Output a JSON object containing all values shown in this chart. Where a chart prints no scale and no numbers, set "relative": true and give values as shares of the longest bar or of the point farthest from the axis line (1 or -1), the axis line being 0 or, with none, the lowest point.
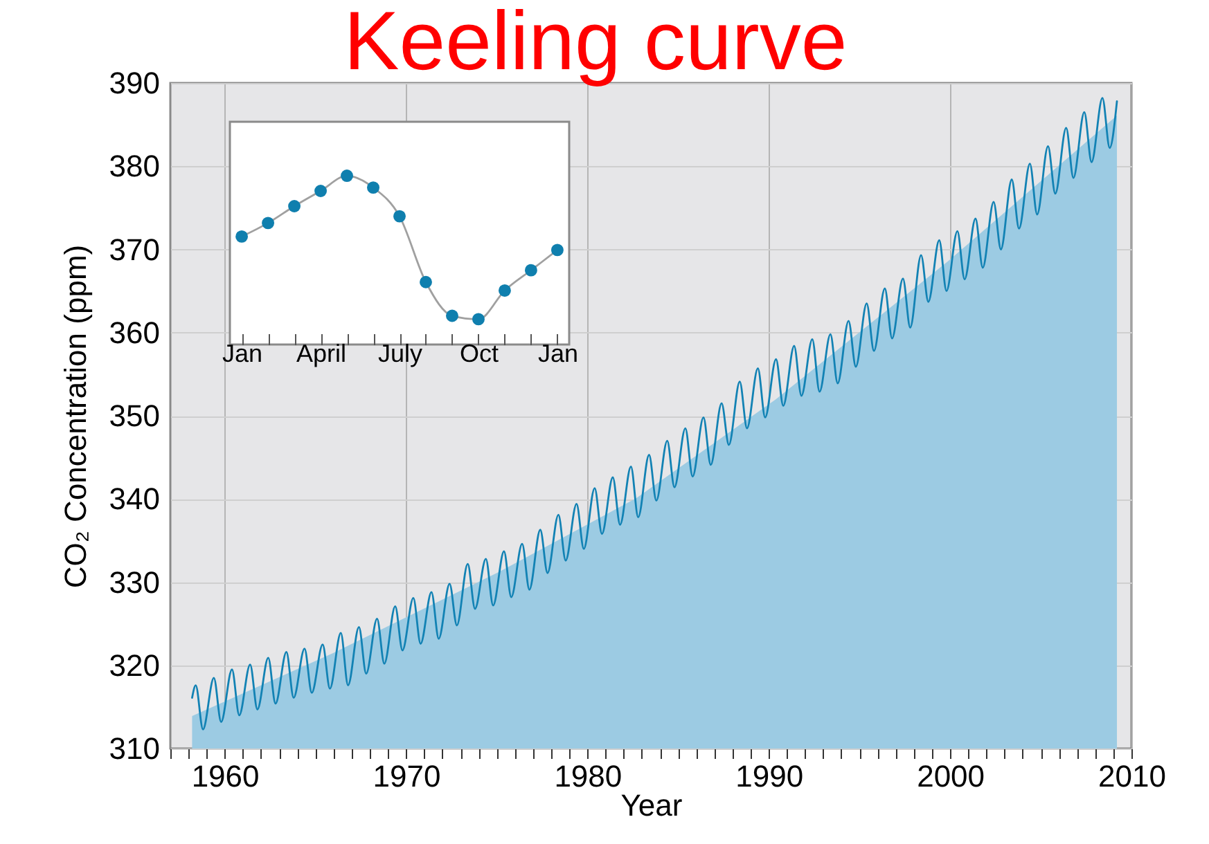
{
  "chart_data": [
    {
      "type": "line",
      "title": "Keeling curve",
      "xlabel": "Year",
      "ylabel": "CO₂ Concentration (ppm)",
      "xlim": [
        1957,
        2010
      ],
      "ylim": [
        310,
        390
      ],
      "xticks": [
        {
          "value": 1957,
          "label": null
        },
        {
          "value": 1958,
          "label": null
        },
        {
          "value": 1959,
          "label": null
        },
        1960,
        {
          "value": 1961,
          "label": null
        },
        {
          "value": 1962,
          "label": null
        },
        {
          "value": 1963,
          "label": null
        },
        {
          "value": 1964,
          "label": null
        },
        {
          "value": 1965,
          "label": null
        },
        {
          "value": 1966,
          "label": null
        },
        {
          "value": 1967,
          "label": null
        },
        {
          "value": 1968,
          "label": null
        },
        {
          "value": 1969,
          "label": null
        },
        1970,
        {
          "value": 1971,
          "label": null
        },
        {
          "value": 1972,
          "label": null
        },
        {
          "value": 1973,
          "label": null
        },
        {
          "value": 1974,
          "label": null
        },
        {
          "value": 1975,
          "label": null
        },
        {
          "value": 1976,
          "label": null
        },
        {
          "value": 1977,
          "label": null
        },
        {
          "value": 1978,
          "label": null
        },
        {
          "value": 1979,
          "label": null
        },
        1980,
        {
          "value": 1981,
          "label": null
        },
        {
          "value": 1982,
          "label": null
        },
        {
          "value": 1983,
          "label": null
        },
        {
          "value": 1984,
          "label": null
        },
        {
          "value": 1985,
          "label": null
        },
        {
          "value": 1986,
          "label": null
        },
        {
          "value": 1987,
          "label": null
        },
        {
          "value": 1988,
          "label": null
        },
        {
          "value": 1989,
          "label": null
        },
        1990,
        {
          "value": 1991,
          "label": null
        },
        {
          "value": 1992,
          "label": null
        },
        {
          "value": 1993,
          "label": null
        },
        {
          "value": 1994,
          "label": null
        },
        {
          "value": 1995,
          "label": null
        },
        {
          "value": 1996,
          "label": null
        },
        {
          "value": 1997,
          "label": null
        },
        {
          "value": 1998,
          "label": null
        },
        {
          "value": 1999,
          "label": null
        },
        2000,
        {
          "value": 2001,
          "label": null
        },
        {
          "value": 2002,
          "label": null
        },
        {
          "value": 2003,
          "label": null
        },
        {
          "value": 2004,
          "label": null
        },
        {
          "value": 2005,
          "label": null
        },
        {
          "value": 2006,
          "label": null
        },
        {
          "value": 2007,
          "label": null
        },
        {
          "value": 2008,
          "label": null
        },
        {
          "value": 2009,
          "label": null
        },
        2010
      ],
      "yticks": [
        310,
        320,
        330,
        340,
        350,
        360,
        370,
        380,
        390
      ],
      "grid": true,
      "series": [
        {
          "type": "area",
          "color": "#9ccbe3",
          "x": [
            1958.2,
            1966,
            1975.1,
            1982.7,
            1990.4,
            1999.9,
            2009.2
          ],
          "values": [
            313.9,
            321.5,
            331.2,
            340.1,
            352.0,
            368.6,
            386.1
          ]
        },
        {
          "type": "line",
          "color": "#1282b4",
          "x": [
            1958.2,
            1958.4,
            1958.8,
            1959.4,
            1959.8,
            1960.4,
            1960.8,
            1961.4,
            1961.8,
            1962.4,
            1962.8,
            1963.4,
            1963.8,
            1964.4,
            1964.8,
            1965.4,
            1965.8,
            1966.4,
            1966.8,
            1967.4,
            1967.8,
            1968.4,
            1968.8,
            1969.4,
            1969.8,
            1970.4,
            1970.8,
            1971.4,
            1971.8,
            1972.4,
            1972.8,
            1973.4,
            1973.8,
            1974.4,
            1974.8,
            1975.4,
            1975.8,
            1976.4,
            1976.8,
            1977.4,
            1977.8,
            1978.4,
            1978.8,
            1979.4,
            1979.8,
            1980.4,
            1980.8,
            1981.4,
            1981.8,
            1982.4,
            1982.8,
            1983.4,
            1983.8,
            1984.4,
            1984.8,
            1985.4,
            1985.8,
            1986.4,
            1986.8,
            1987.4,
            1987.8,
            1988.4,
            1988.8,
            1989.4,
            1989.8,
            1990.4,
            1990.8,
            1991.4,
            1991.8,
            1992.4,
            1992.8,
            1993.4,
            1993.8,
            1994.4,
            1994.8,
            1995.4,
            1995.8,
            1996.4,
            1996.8,
            1997.4,
            1997.8,
            1998.4,
            1998.8,
            1999.4,
            1999.8,
            2000.4,
            2000.8,
            2001.4,
            2001.8,
            2002.4,
            2002.8,
            2003.4,
            2003.8,
            2004.4,
            2004.8,
            2005.4,
            2005.8,
            2006.4,
            2006.8,
            2007.4,
            2007.8,
            2008.4,
            2008.8,
            2009.2
          ],
          "values": [
            316.1,
            317.6,
            312.3,
            318.5,
            313.2,
            319.5,
            314.0,
            320.1,
            314.7,
            320.9,
            315.4,
            321.6,
            316.1,
            322.0,
            316.7,
            322.5,
            317.2,
            323.9,
            317.6,
            324.6,
            319.0,
            325.6,
            320.2,
            327.1,
            321.8,
            328.1,
            322.6,
            328.8,
            323.2,
            329.8,
            324.8,
            332.2,
            326.8,
            332.8,
            327.2,
            333.7,
            328.2,
            334.6,
            329.1,
            336.3,
            331.1,
            338.1,
            332.6,
            339.4,
            334.0,
            341.3,
            335.8,
            342.6,
            336.9,
            343.9,
            337.8,
            345.3,
            339.8,
            347.0,
            341.4,
            348.5,
            342.7,
            349.8,
            344.1,
            351.5,
            346.5,
            354.1,
            348.5,
            355.7,
            349.8,
            356.8,
            351.2,
            358.4,
            352.4,
            359.2,
            352.9,
            359.8,
            353.9,
            361.4,
            355.9,
            363.5,
            357.8,
            365.3,
            359.3,
            366.5,
            360.6,
            369.3,
            363.7,
            371.1,
            365.0,
            372.2,
            366.4,
            373.7,
            367.8,
            375.7,
            370.0,
            378.4,
            372.5,
            380.3,
            374.2,
            382.4,
            376.7,
            384.6,
            378.6,
            386.5,
            380.5,
            388.2,
            382.2,
            387.8
          ]
        }
      ]
    },
    {
      "type": "line",
      "relative": true,
      "categories": [
        "Jan",
        null,
        null,
        "April",
        null,
        null,
        "July",
        null,
        null,
        "Oct",
        null,
        null,
        "Jan"
      ],
      "series": [
        {
          "type": "line",
          "color": "#a0a0a0",
          "values": [
            0.64,
            0.72,
            0.82,
            0.91,
            1,
            0.93,
            0.76,
            0.37,
            0.17,
            0.15,
            0.32,
            0.44,
            0.56
          ]
        },
        {
          "type": "scatter",
          "color": "#0f7fae",
          "values": [
            0.64,
            0.72,
            0.82,
            0.91,
            1,
            0.93,
            0.76,
            0.37,
            0.17,
            0.15,
            0.32,
            0.44,
            0.56
          ]
        }
      ]
    }
  ]
}
